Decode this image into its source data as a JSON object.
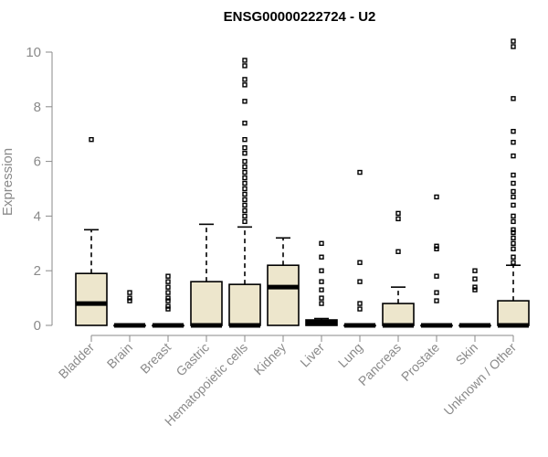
{
  "chart_data": {
    "type": "box",
    "title": "ENSG00000222724 - U2",
    "ylabel": "Expression",
    "ylim": [
      0,
      10.5
    ],
    "yticks": [
      0,
      2,
      4,
      6,
      8,
      10
    ],
    "colors": {
      "box_fill": "#ede6cc",
      "box_stroke": "#000000",
      "axis": "#8a8a8a"
    },
    "categories": [
      "Bladder",
      "Brain",
      "Breast",
      "Gastric",
      "Hematopoietic cells",
      "Kidney",
      "Liver",
      "Lung",
      "Pancreas",
      "Prostate",
      "Skin",
      "Unknown / Other"
    ],
    "boxes": [
      {
        "category": "Bladder",
        "q1": 0,
        "median": 0.8,
        "q3": 1.9,
        "whisker_low": 0,
        "whisker_high": 3.5,
        "outliers": [
          6.8
        ]
      },
      {
        "category": "Brain",
        "q1": 0,
        "median": 0,
        "q3": 0,
        "whisker_low": 0,
        "whisker_high": 0,
        "outliers": [
          0.9,
          1.0,
          1.2
        ]
      },
      {
        "category": "Breast",
        "q1": 0,
        "median": 0,
        "q3": 0,
        "whisker_low": 0,
        "whisker_high": 0,
        "outliers": [
          0.6,
          0.7,
          0.9,
          1.0,
          1.2,
          1.4,
          1.6,
          1.8
        ]
      },
      {
        "category": "Gastric",
        "q1": 0,
        "median": 0,
        "q3": 1.6,
        "whisker_low": 0,
        "whisker_high": 3.7,
        "outliers": []
      },
      {
        "category": "Hematopoietic cells",
        "q1": 0,
        "median": 0,
        "q3": 1.5,
        "whisker_low": 0,
        "whisker_high": 3.6,
        "outliers": [
          3.8,
          4.0,
          4.2,
          4.4,
          4.6,
          4.8,
          5.0,
          5.2,
          5.4,
          5.6,
          5.8,
          6.0,
          6.3,
          6.5,
          6.8,
          7.4,
          8.2,
          8.8,
          9.0,
          9.5,
          9.7
        ]
      },
      {
        "category": "Kidney",
        "q1": 0,
        "median": 1.4,
        "q3": 2.2,
        "whisker_low": 0,
        "whisker_high": 3.2,
        "outliers": []
      },
      {
        "category": "Liver",
        "q1": 0,
        "median": 0.1,
        "q3": 0.2,
        "whisker_low": 0,
        "whisker_high": 0.25,
        "outliers": [
          0.8,
          1.0,
          1.3,
          1.6,
          2.0,
          2.5,
          3.0
        ]
      },
      {
        "category": "Lung",
        "q1": 0,
        "median": 0,
        "q3": 0,
        "whisker_low": 0,
        "whisker_high": 0,
        "outliers": [
          0.6,
          0.8,
          1.6,
          2.3,
          5.6
        ]
      },
      {
        "category": "Pancreas",
        "q1": 0,
        "median": 0,
        "q3": 0.8,
        "whisker_low": 0,
        "whisker_high": 1.4,
        "outliers": [
          2.7,
          3.9,
          4.1
        ]
      },
      {
        "category": "Prostate",
        "q1": 0,
        "median": 0,
        "q3": 0,
        "whisker_low": 0,
        "whisker_high": 0,
        "outliers": [
          0.9,
          1.2,
          1.8,
          2.8,
          2.9,
          4.7
        ]
      },
      {
        "category": "Skin",
        "q1": 0,
        "median": 0,
        "q3": 0,
        "whisker_low": 0,
        "whisker_high": 0,
        "outliers": [
          1.3,
          1.4,
          1.7,
          2.0
        ]
      },
      {
        "category": "Unknown / Other",
        "q1": 0,
        "median": 0,
        "q3": 0.9,
        "whisker_low": 0,
        "whisker_high": 2.2,
        "outliers": [
          2.3,
          2.5,
          2.8,
          3.0,
          3.2,
          3.4,
          3.5,
          3.8,
          4.0,
          4.4,
          4.7,
          4.9,
          5.2,
          5.5,
          6.2,
          6.7,
          7.1,
          8.3,
          10.2,
          10.4
        ]
      }
    ]
  }
}
